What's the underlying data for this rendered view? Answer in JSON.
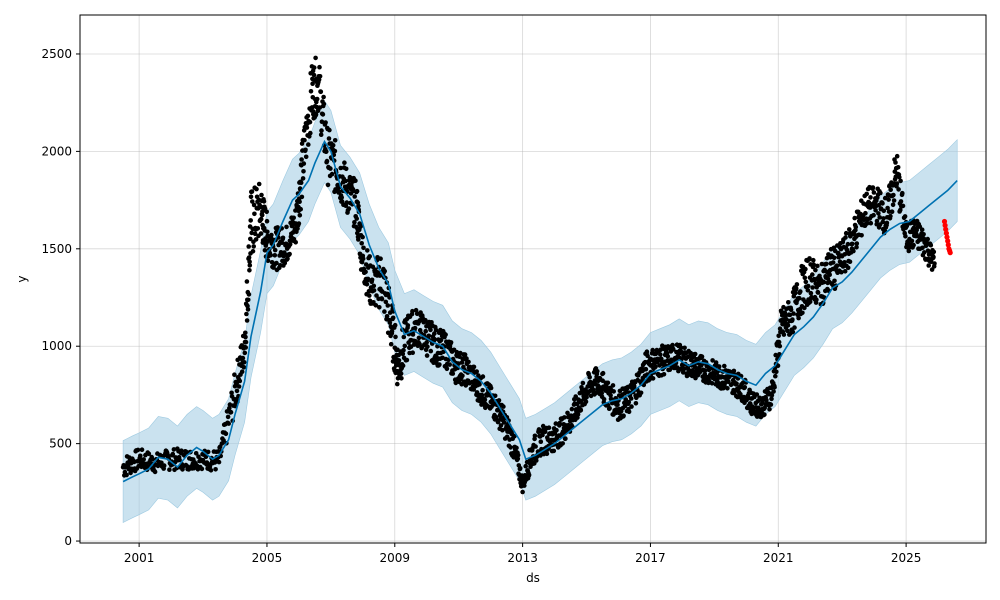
{
  "chart_data": {
    "type": "line",
    "xlabel": "ds",
    "ylabel": "y",
    "x_ticks": [
      "2001",
      "2005",
      "2009",
      "2013",
      "2017",
      "2021",
      "2025"
    ],
    "y_ticks": [
      "0",
      "500",
      "1000",
      "1500",
      "2000",
      "2500"
    ],
    "xlim": [
      1999.15,
      2027.5
    ],
    "ylim": [
      -10,
      2700
    ],
    "grid": true,
    "colors": {
      "observed": "#000000",
      "forecast": "#0072B2",
      "interval": "#9ecae1",
      "future": "#ff0000"
    },
    "series": [
      {
        "role": "forecast",
        "points": [
          [
            2000.5,
            305
          ],
          [
            2000.8,
            330
          ],
          [
            2001.0,
            345
          ],
          [
            2001.3,
            370
          ],
          [
            2001.6,
            430
          ],
          [
            2001.9,
            420
          ],
          [
            2002.2,
            380
          ],
          [
            2002.5,
            440
          ],
          [
            2002.8,
            480
          ],
          [
            2003.0,
            460
          ],
          [
            2003.3,
            420
          ],
          [
            2003.5,
            440
          ],
          [
            2003.8,
            520
          ],
          [
            2004.0,
            650
          ],
          [
            2004.3,
            820
          ],
          [
            2004.5,
            1050
          ],
          [
            2004.8,
            1280
          ],
          [
            2005.0,
            1480
          ],
          [
            2005.2,
            1520
          ],
          [
            2005.5,
            1640
          ],
          [
            2005.8,
            1750
          ],
          [
            2006.0,
            1780
          ],
          [
            2006.3,
            1850
          ],
          [
            2006.5,
            1940
          ],
          [
            2006.8,
            2050
          ],
          [
            2007.0,
            2000
          ],
          [
            2007.3,
            1820
          ],
          [
            2007.6,
            1760
          ],
          [
            2007.9,
            1680
          ],
          [
            2008.2,
            1520
          ],
          [
            2008.5,
            1400
          ],
          [
            2008.8,
            1320
          ],
          [
            2009.0,
            1180
          ],
          [
            2009.3,
            1060
          ],
          [
            2009.6,
            1080
          ],
          [
            2009.9,
            1050
          ],
          [
            2010.2,
            1020
          ],
          [
            2010.5,
            1000
          ],
          [
            2010.8,
            920
          ],
          [
            2011.1,
            880
          ],
          [
            2011.4,
            860
          ],
          [
            2011.7,
            820
          ],
          [
            2012.0,
            760
          ],
          [
            2012.3,
            680
          ],
          [
            2012.6,
            600
          ],
          [
            2012.9,
            520
          ],
          [
            2013.1,
            420
          ],
          [
            2013.4,
            440
          ],
          [
            2013.7,
            470
          ],
          [
            2014.0,
            500
          ],
          [
            2014.3,
            540
          ],
          [
            2014.6,
            580
          ],
          [
            2014.9,
            620
          ],
          [
            2015.2,
            660
          ],
          [
            2015.5,
            700
          ],
          [
            2015.8,
            720
          ],
          [
            2016.1,
            730
          ],
          [
            2016.4,
            760
          ],
          [
            2016.7,
            800
          ],
          [
            2017.0,
            860
          ],
          [
            2017.3,
            880
          ],
          [
            2017.6,
            900
          ],
          [
            2017.9,
            930
          ],
          [
            2018.2,
            900
          ],
          [
            2018.5,
            920
          ],
          [
            2018.8,
            910
          ],
          [
            2019.1,
            880
          ],
          [
            2019.4,
            860
          ],
          [
            2019.7,
            850
          ],
          [
            2020.0,
            820
          ],
          [
            2020.3,
            800
          ],
          [
            2020.6,
            860
          ],
          [
            2020.9,
            900
          ],
          [
            2021.2,
            980
          ],
          [
            2021.5,
            1060
          ],
          [
            2021.8,
            1100
          ],
          [
            2022.1,
            1150
          ],
          [
            2022.4,
            1220
          ],
          [
            2022.7,
            1300
          ],
          [
            2023.0,
            1330
          ],
          [
            2023.3,
            1380
          ],
          [
            2023.6,
            1440
          ],
          [
            2023.9,
            1500
          ],
          [
            2024.2,
            1560
          ],
          [
            2024.5,
            1600
          ],
          [
            2024.8,
            1630
          ],
          [
            2025.1,
            1640
          ],
          [
            2025.4,
            1680
          ],
          [
            2025.7,
            1720
          ],
          [
            2026.0,
            1760
          ],
          [
            2026.3,
            1800
          ],
          [
            2026.6,
            1850
          ]
        ]
      }
    ],
    "interval_halfwidth": 210,
    "observed_segments": [
      [
        2000.5,
        380,
        120
      ],
      [
        2001.0,
        420,
        110
      ],
      [
        2001.5,
        400,
        100
      ],
      [
        2002.0,
        420,
        110
      ],
      [
        2002.5,
        420,
        110
      ],
      [
        2003.0,
        420,
        100
      ],
      [
        2003.5,
        410,
        120
      ],
      [
        2004.0,
        760,
        220
      ],
      [
        2004.3,
        1000,
        220
      ],
      [
        2004.5,
        1620,
        380
      ],
      [
        2004.8,
        1700,
        300
      ],
      [
        2005.0,
        1560,
        260
      ],
      [
        2005.3,
        1500,
        220
      ],
      [
        2005.6,
        1520,
        200
      ],
      [
        2005.9,
        1620,
        220
      ],
      [
        2006.1,
        1900,
        300
      ],
      [
        2006.4,
        2300,
        300
      ],
      [
        2006.6,
        2350,
        300
      ],
      [
        2006.9,
        1980,
        300
      ],
      [
        2007.2,
        1900,
        280
      ],
      [
        2007.5,
        1800,
        250
      ],
      [
        2007.8,
        1720,
        250
      ],
      [
        2008.0,
        1450,
        250
      ],
      [
        2008.3,
        1300,
        250
      ],
      [
        2008.6,
        1350,
        300
      ],
      [
        2008.9,
        1100,
        300
      ],
      [
        2009.1,
        900,
        250
      ],
      [
        2009.4,
        1050,
        250
      ],
      [
        2009.7,
        1100,
        200
      ],
      [
        2010.0,
        1050,
        200
      ],
      [
        2010.3,
        1000,
        200
      ],
      [
        2010.6,
        980,
        180
      ],
      [
        2010.9,
        900,
        180
      ],
      [
        2011.2,
        880,
        160
      ],
      [
        2011.5,
        820,
        160
      ],
      [
        2011.8,
        760,
        160
      ],
      [
        2012.1,
        700,
        150
      ],
      [
        2012.4,
        620,
        150
      ],
      [
        2012.7,
        500,
        150
      ],
      [
        2013.0,
        290,
        80
      ],
      [
        2013.3,
        450,
        150
      ],
      [
        2013.6,
        520,
        150
      ],
      [
        2013.9,
        520,
        140
      ],
      [
        2014.2,
        560,
        140
      ],
      [
        2014.5,
        620,
        140
      ],
      [
        2014.8,
        720,
        140
      ],
      [
        2015.1,
        800,
        150
      ],
      [
        2015.4,
        820,
        150
      ],
      [
        2015.7,
        740,
        150
      ],
      [
        2016.0,
        700,
        160
      ],
      [
        2016.3,
        720,
        150
      ],
      [
        2016.6,
        800,
        160
      ],
      [
        2016.9,
        900,
        170
      ],
      [
        2017.2,
        920,
        160
      ],
      [
        2017.5,
        930,
        150
      ],
      [
        2017.8,
        950,
        140
      ],
      [
        2018.1,
        920,
        140
      ],
      [
        2018.4,
        900,
        140
      ],
      [
        2018.7,
        880,
        130
      ],
      [
        2019.0,
        860,
        130
      ],
      [
        2019.3,
        840,
        130
      ],
      [
        2019.6,
        820,
        130
      ],
      [
        2019.9,
        780,
        130
      ],
      [
        2020.2,
        700,
        120
      ],
      [
        2020.5,
        690,
        110
      ],
      [
        2020.8,
        760,
        140
      ],
      [
        2021.1,
        1100,
        200
      ],
      [
        2021.4,
        1150,
        200
      ],
      [
        2021.7,
        1280,
        250
      ],
      [
        2022.0,
        1350,
        250
      ],
      [
        2022.3,
        1300,
        200
      ],
      [
        2022.6,
        1380,
        250
      ],
      [
        2022.9,
        1420,
        200
      ],
      [
        2023.2,
        1500,
        200
      ],
      [
        2023.5,
        1620,
        200
      ],
      [
        2023.8,
        1720,
        200
      ],
      [
        2024.1,
        1720,
        200
      ],
      [
        2024.4,
        1660,
        200
      ],
      [
        2024.7,
        1900,
        250
      ],
      [
        2025.0,
        1560,
        160
      ],
      [
        2025.3,
        1580,
        160
      ],
      [
        2025.6,
        1520,
        160
      ],
      [
        2025.9,
        1420,
        120
      ]
    ],
    "future_points": [
      [
        2026.2,
        1640
      ],
      [
        2026.22,
        1620
      ],
      [
        2026.24,
        1600
      ],
      [
        2026.26,
        1580
      ],
      [
        2026.28,
        1560
      ],
      [
        2026.3,
        1540
      ],
      [
        2026.32,
        1520
      ],
      [
        2026.34,
        1500
      ],
      [
        2026.36,
        1490
      ],
      [
        2026.38,
        1480
      ]
    ]
  }
}
